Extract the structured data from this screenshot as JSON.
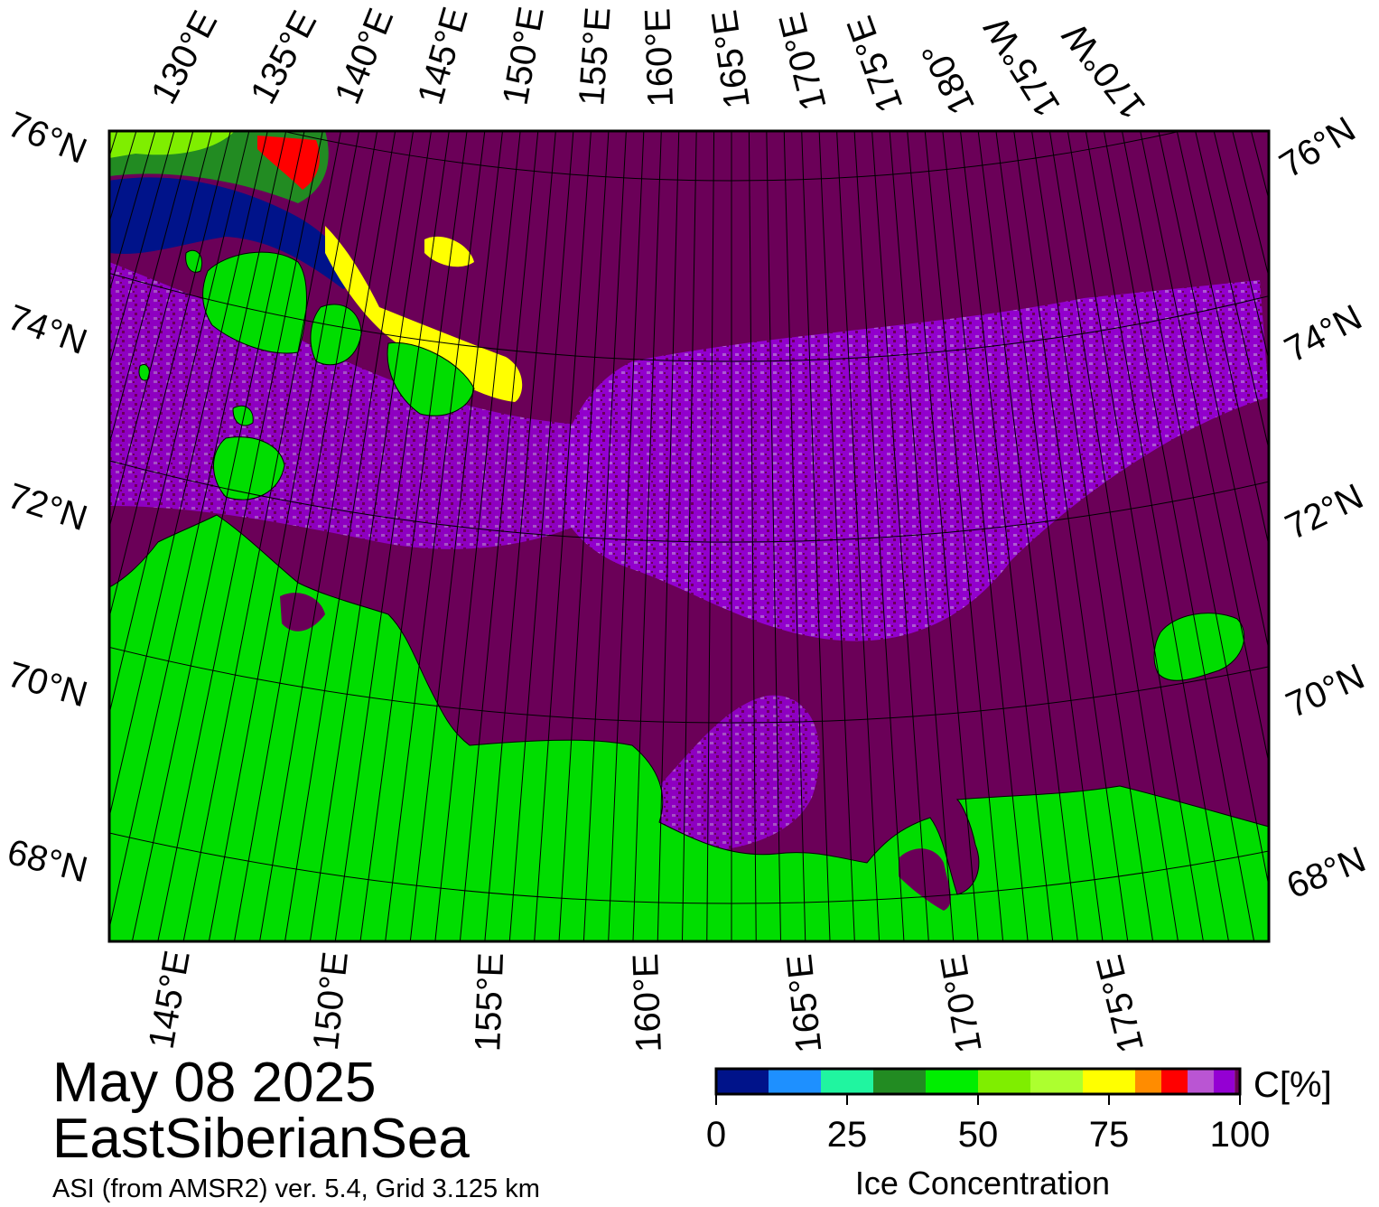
{
  "date_label": "May 08 2025",
  "region_label": "EastSiberianSea",
  "source_label": "ASI (from AMSR2) ver. 5.4,  Grid 3.125 km",
  "colorbar": {
    "unit_label": "C[%]",
    "title": "Ice Concentration",
    "ticks": [
      "0",
      "25",
      "50",
      "75",
      "100"
    ],
    "colors": [
      "#00138a",
      "#1e90ff",
      "#20f5a0",
      "#228b22",
      "#00ee00",
      "#7fee00",
      "#adff2f",
      "#ffff00",
      "#ff8c00",
      "#ff0000",
      "#ba55d3",
      "#9400d3",
      "#6b0058"
    ]
  },
  "map": {
    "land_color": "#00dd00",
    "ocean_high_ice_color": "#6b0058",
    "top_longitude_labels": [
      "130°E",
      "135°E",
      "140°E",
      "145°E",
      "150°E",
      "155°E",
      "160°E",
      "165°E",
      "170°E",
      "175°E",
      "180°",
      "175°W",
      "170°W"
    ],
    "bottom_longitude_labels": [
      "145°E",
      "150°E",
      "155°E",
      "160°E",
      "165°E",
      "170°E",
      "175°E"
    ],
    "left_latitude_labels": [
      "76°N",
      "74°N",
      "72°N",
      "70°N",
      "68°N"
    ],
    "right_latitude_labels": [
      "76°N",
      "74°N",
      "72°N",
      "70°N",
      "68°N"
    ]
  }
}
